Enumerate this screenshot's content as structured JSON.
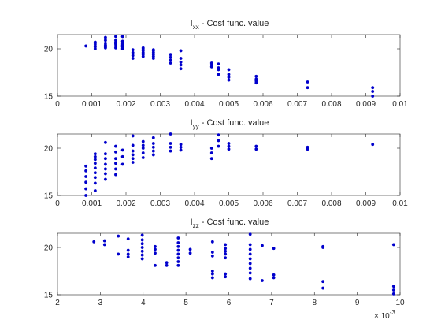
{
  "chart_data": [
    {
      "type": "scatter",
      "title_main": "I",
      "title_sub": "xx",
      "title_rest": " - Cost func. value",
      "xlim": [
        0,
        0.01
      ],
      "ylim": [
        15,
        21.5
      ],
      "xticks": [
        0,
        0.001,
        0.002,
        0.003,
        0.004,
        0.005,
        0.006,
        0.007,
        0.008,
        0.009,
        0.01
      ],
      "xtick_labels": [
        "0",
        "0.001",
        "0.002",
        "0.003",
        "0.004",
        "0.005",
        "0.006",
        "0.007",
        "0.008",
        "0.009",
        "0.01"
      ],
      "yticks": [
        15,
        20
      ],
      "ytick_labels": [
        "15",
        "20"
      ],
      "grid": false,
      "marker_color": "#0000cc",
      "x": [
        0.00083,
        0.0011,
        0.0011,
        0.0011,
        0.0011,
        0.0011,
        0.0014,
        0.0014,
        0.0014,
        0.0014,
        0.0014,
        0.0014,
        0.0014,
        0.0017,
        0.0017,
        0.0017,
        0.0017,
        0.0017,
        0.0017,
        0.0017,
        0.0019,
        0.0019,
        0.0019,
        0.0019,
        0.0019,
        0.0019,
        0.0022,
        0.0022,
        0.0022,
        0.0022,
        0.0025,
        0.0025,
        0.0025,
        0.0025,
        0.0025,
        0.0025,
        0.0025,
        0.0028,
        0.0028,
        0.0028,
        0.0028,
        0.0028,
        0.0028,
        0.0033,
        0.0033,
        0.0033,
        0.0033,
        0.0036,
        0.0036,
        0.0036,
        0.0036,
        0.0036,
        0.0045,
        0.0045,
        0.0045,
        0.0047,
        0.0047,
        0.0047,
        0.0047,
        0.005,
        0.005,
        0.005,
        0.005,
        0.0058,
        0.0058,
        0.0058,
        0.0058,
        0.0073,
        0.0073,
        0.0092,
        0.0092,
        0.0092
      ],
      "y": [
        20.3,
        20.2,
        20.3,
        20.5,
        20.7,
        20.0,
        20.1,
        20.4,
        20.6,
        20.9,
        21.2,
        20.3,
        20.2,
        20.1,
        20.3,
        20.5,
        20.7,
        20.9,
        21.3,
        20.6,
        20.0,
        20.2,
        20.4,
        20.6,
        20.8,
        21.3,
        19.0,
        19.3,
        19.6,
        19.9,
        19.2,
        19.4,
        19.6,
        19.8,
        20.0,
        20.1,
        19.5,
        19.0,
        19.2,
        19.4,
        19.6,
        19.8,
        19.9,
        18.5,
        18.8,
        19.1,
        19.4,
        17.9,
        18.3,
        18.6,
        19.0,
        19.8,
        18.1,
        18.5,
        18.3,
        17.3,
        17.8,
        18.4,
        18.0,
        16.7,
        17.0,
        17.3,
        17.8,
        16.4,
        16.6,
        16.8,
        17.1,
        15.9,
        16.5,
        15.0,
        15.5,
        15.9
      ]
    },
    {
      "type": "scatter",
      "title_main": "I",
      "title_sub": "yy",
      "title_rest": " - Cost func. value",
      "xlim": [
        0,
        0.01
      ],
      "ylim": [
        15,
        21.5
      ],
      "xticks": [
        0,
        0.001,
        0.002,
        0.003,
        0.004,
        0.005,
        0.006,
        0.007,
        0.008,
        0.009,
        0.01
      ],
      "xtick_labels": [
        "0",
        "0.001",
        "0.002",
        "0.003",
        "0.004",
        "0.005",
        "0.006",
        "0.007",
        "0.008",
        "0.009",
        "0.01"
      ],
      "yticks": [
        15,
        20
      ],
      "ytick_labels": [
        "15",
        "20"
      ],
      "grid": false,
      "marker_color": "#0000cc",
      "x": [
        0.00083,
        0.00083,
        0.00083,
        0.00083,
        0.00083,
        0.00083,
        0.0011,
        0.0011,
        0.0011,
        0.0011,
        0.0011,
        0.0011,
        0.0011,
        0.0011,
        0.0011,
        0.0014,
        0.0014,
        0.0014,
        0.0014,
        0.0014,
        0.0014,
        0.0014,
        0.0017,
        0.0017,
        0.0017,
        0.0017,
        0.0017,
        0.0017,
        0.0019,
        0.0019,
        0.0019,
        0.0022,
        0.0022,
        0.0022,
        0.0022,
        0.0022,
        0.0022,
        0.0025,
        0.0025,
        0.0025,
        0.0025,
        0.0025,
        0.0028,
        0.0028,
        0.0028,
        0.0028,
        0.0028,
        0.0033,
        0.0033,
        0.0033,
        0.0033,
        0.0036,
        0.0036,
        0.0036,
        0.0045,
        0.0045,
        0.0045,
        0.0047,
        0.0047,
        0.0047,
        0.005,
        0.005,
        0.005,
        0.0058,
        0.0058,
        0.0073,
        0.0073,
        0.0092
      ],
      "y": [
        15.0,
        15.7,
        16.4,
        17.0,
        17.6,
        18.1,
        15.5,
        16.3,
        16.9,
        17.4,
        17.9,
        18.4,
        18.8,
        19.1,
        19.4,
        16.7,
        17.3,
        17.8,
        18.3,
        18.9,
        19.4,
        20.6,
        17.2,
        17.8,
        18.4,
        18.9,
        19.6,
        20.2,
        18.3,
        19.1,
        19.8,
        18.5,
        18.9,
        19.3,
        19.7,
        20.3,
        21.3,
        19.0,
        19.5,
        20.0,
        20.3,
        20.7,
        19.3,
        19.7,
        20.1,
        20.5,
        21.1,
        19.7,
        20.1,
        20.5,
        21.5,
        19.8,
        20.1,
        20.4,
        18.9,
        19.5,
        20.0,
        20.2,
        20.8,
        21.4,
        19.9,
        20.2,
        20.5,
        19.9,
        20.2,
        19.9,
        20.1,
        20.4
      ]
    },
    {
      "type": "scatter",
      "title_main": "I",
      "title_sub": "zz",
      "title_rest": " - Cost func. value",
      "xlim": [
        2,
        10
      ],
      "ylim": [
        15,
        21.5
      ],
      "xticks": [
        2,
        3,
        4,
        5,
        6,
        7,
        8,
        9,
        10
      ],
      "xtick_labels": [
        "2",
        "3",
        "4",
        "5",
        "6",
        "7",
        "8",
        "9",
        "10"
      ],
      "yticks": [
        15,
        20
      ],
      "ytick_labels": [
        "15",
        "20"
      ],
      "x_exponent_base": "× 10",
      "x_exponent_power": "-3",
      "grid": false,
      "marker_color": "#0000cc",
      "x": [
        2.85,
        3.1,
        3.1,
        3.42,
        3.42,
        3.65,
        3.65,
        3.65,
        3.65,
        3.98,
        3.98,
        3.98,
        3.98,
        3.98,
        3.98,
        3.98,
        4.28,
        4.28,
        4.28,
        4.28,
        4.55,
        4.55,
        4.82,
        4.82,
        4.82,
        4.82,
        4.82,
        4.82,
        4.82,
        4.82,
        5.1,
        5.1,
        5.62,
        5.62,
        5.62,
        5.62,
        5.62,
        5.62,
        5.92,
        5.92,
        5.92,
        5.92,
        5.92,
        5.92,
        5.92,
        6.5,
        6.5,
        6.5,
        6.5,
        6.5,
        6.5,
        6.5,
        6.5,
        6.5,
        6.78,
        6.78,
        7.05,
        7.05,
        7.05,
        8.2,
        8.2,
        8.2,
        8.2,
        9.85,
        9.85,
        9.85,
        9.85
      ],
      "y": [
        20.6,
        20.7,
        20.3,
        21.2,
        19.3,
        19.0,
        19.3,
        19.7,
        20.9,
        18.8,
        19.2,
        19.6,
        20.0,
        20.4,
        20.8,
        21.3,
        18.1,
        19.4,
        19.8,
        20.1,
        18.1,
        18.4,
        18.1,
        18.5,
        18.9,
        19.3,
        19.7,
        20.1,
        20.5,
        21.0,
        19.4,
        19.8,
        16.8,
        17.2,
        17.5,
        19.1,
        19.5,
        20.6,
        16.9,
        17.2,
        18.9,
        19.3,
        19.6,
        19.9,
        20.3,
        16.7,
        17.3,
        17.8,
        18.3,
        18.8,
        19.3,
        19.8,
        20.3,
        21.4,
        16.5,
        20.2,
        16.8,
        17.1,
        19.9,
        15.7,
        16.4,
        20.0,
        20.1,
        15.1,
        15.5,
        15.9,
        20.3
      ]
    }
  ]
}
